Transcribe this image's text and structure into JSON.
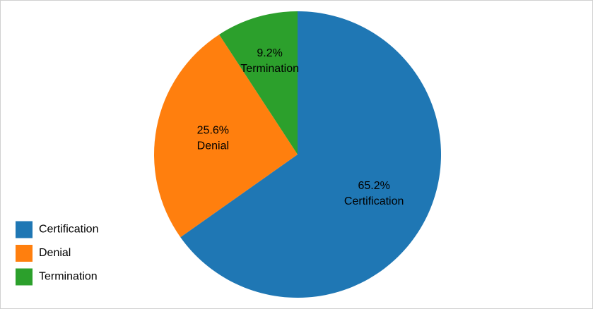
{
  "chart_data": {
    "type": "pie",
    "categories": [
      "Certification",
      "Denial",
      "Termination"
    ],
    "values": [
      65.2,
      25.6,
      9.2
    ],
    "value_labels": [
      "65.2%",
      "25.6%",
      "9.2%"
    ],
    "colors": [
      "#1f77b4",
      "#ff7f0e",
      "#2ca02c"
    ],
    "legend": "bottom-left"
  }
}
